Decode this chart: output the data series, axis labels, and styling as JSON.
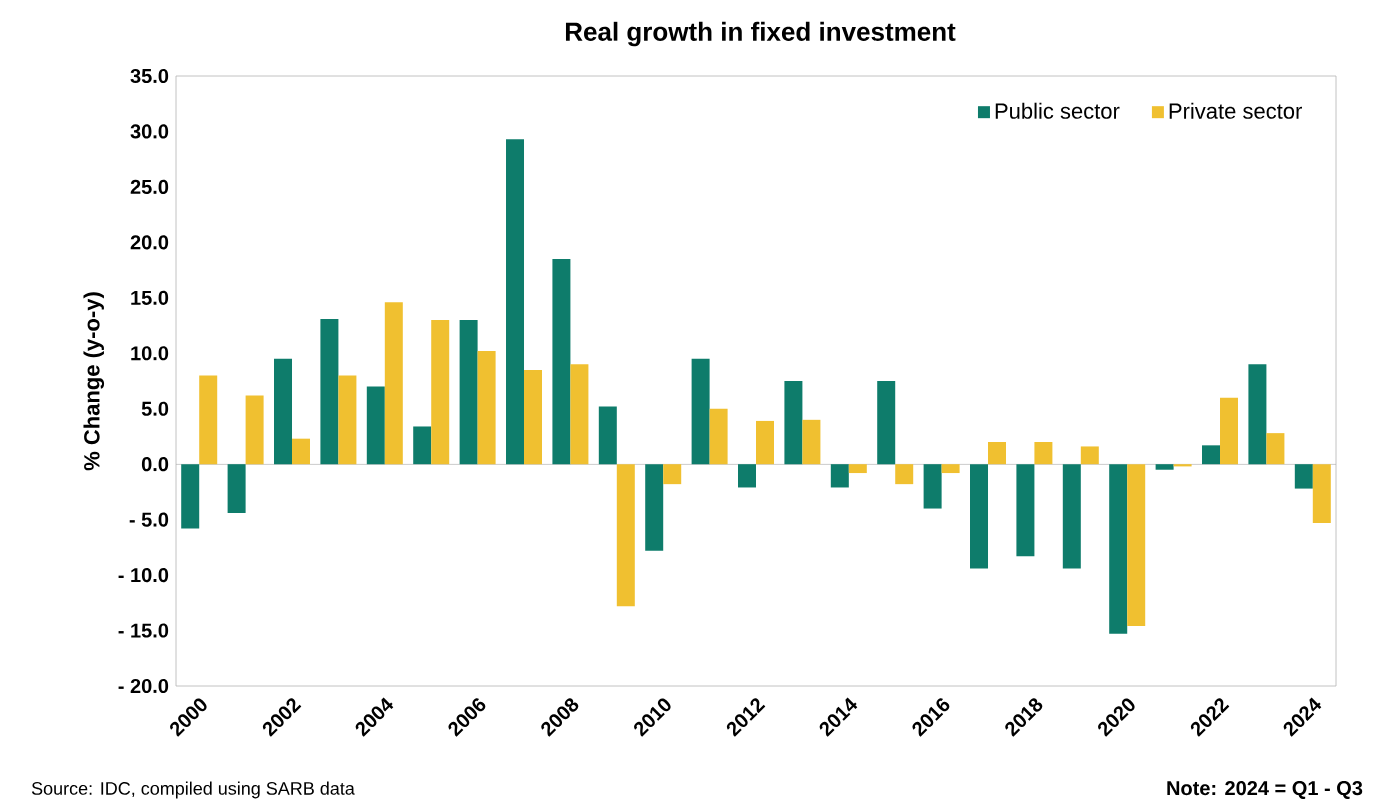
{
  "chart_data": {
    "type": "bar",
    "title": "Real growth in fixed investment",
    "ylabel": "% Change (y-o-y)",
    "categories": [
      "2000",
      null,
      "2002",
      null,
      "2004",
      null,
      "2006",
      null,
      "2008",
      null,
      "2010",
      null,
      "2012",
      null,
      "2014",
      null,
      "2016",
      null,
      "2018",
      null,
      "2020",
      null,
      "2022",
      null,
      "2024"
    ],
    "series": [
      {
        "name": "Public sector",
        "color": "#0e7c6b",
        "values": [
          -5.8,
          -4.4,
          9.5,
          13.1,
          7.0,
          3.4,
          13.0,
          29.3,
          18.5,
          5.2,
          -7.8,
          9.5,
          -2.1,
          7.5,
          -2.1,
          7.5,
          -4.0,
          -9.4,
          -8.3,
          -9.4,
          -15.3,
          -0.5,
          1.7,
          9.0,
          -2.2
        ]
      },
      {
        "name": "Private sector",
        "color": "#f0c030",
        "values": [
          8.0,
          6.2,
          2.3,
          8.0,
          14.6,
          13.0,
          10.2,
          8.5,
          9.0,
          -12.8,
          -1.8,
          5.0,
          3.9,
          4.0,
          -0.8,
          -1.8,
          -0.8,
          2.0,
          2.0,
          1.6,
          -14.6,
          -0.2,
          6.0,
          2.8,
          -5.3
        ]
      }
    ],
    "ylim": [
      -20,
      35
    ],
    "yticks": [
      {
        "value": 35,
        "label": "35.0"
      },
      {
        "value": 30,
        "label": "30.0"
      },
      {
        "value": 25,
        "label": "25.0"
      },
      {
        "value": 20,
        "label": "20.0"
      },
      {
        "value": 15,
        "label": "15.0"
      },
      {
        "value": 10,
        "label": "10.0"
      },
      {
        "value": 5,
        "label": "5.0"
      },
      {
        "value": 0,
        "label": "0.0"
      },
      {
        "value": -5,
        "label": "- 5.0"
      },
      {
        "value": -10,
        "label": "- 10.0"
      },
      {
        "value": -15,
        "label": "- 15.0"
      },
      {
        "value": -20,
        "label": "- 20.0"
      }
    ],
    "ref_lines": [
      {
        "axis": "y",
        "value": 0,
        "color": "#aaaaaa"
      }
    ],
    "legend": "top right",
    "grid": false,
    "annotations": [
      "Source: IDC, compiled using SARB data",
      "Note: 2024 = Q1 - Q3"
    ]
  }
}
